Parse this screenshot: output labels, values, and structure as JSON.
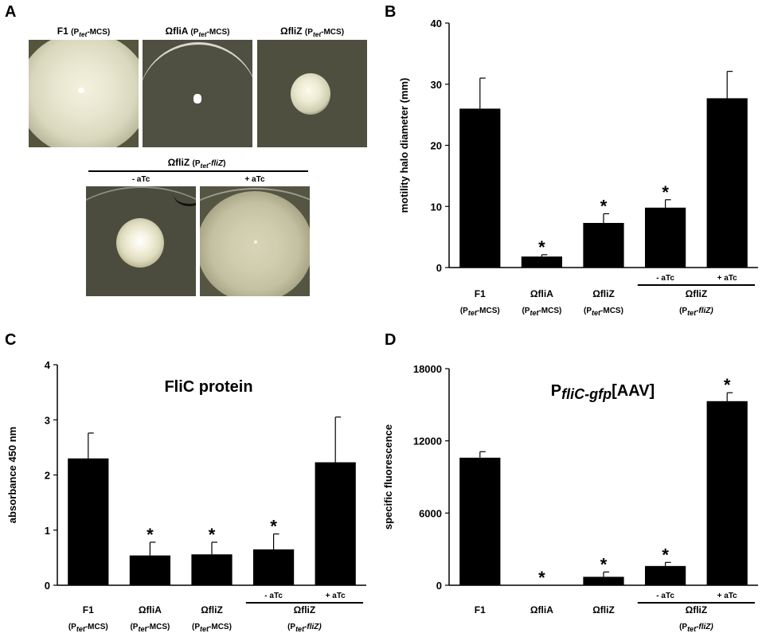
{
  "figure": {
    "panel_a": {
      "letter": "A",
      "top_plates": [
        {
          "name": "F1",
          "promoter": "P",
          "promoter_sub": "tet",
          "suffix": "-MCS"
        },
        {
          "name": "ΩfliA",
          "promoter": "P",
          "promoter_sub": "tet",
          "suffix": "-MCS"
        },
        {
          "name": "ΩfliZ",
          "promoter": "P",
          "promoter_sub": "tet",
          "suffix": "-MCS"
        }
      ],
      "bottom_group": {
        "name": "ΩfliZ",
        "promoter": "P",
        "promoter_sub": "tet",
        "suffix": "-",
        "gene": "fliZ"
      },
      "bottom_plates": [
        {
          "label": "- aTc"
        },
        {
          "label": "+ aTc"
        }
      ]
    },
    "panel_letters": {
      "b": "B",
      "c": "C",
      "d": "D"
    }
  },
  "chart_data": [
    {
      "panel": "B",
      "type": "bar",
      "title": "",
      "ylabel": "motility halo diameter (mm)",
      "ylim": [
        0,
        40
      ],
      "yticks": [
        "0",
        "10",
        "20",
        "30",
        "40"
      ],
      "categories": [
        "F1",
        "ΩfliA",
        "ΩfliZ",
        "- aTc",
        "+ aTc"
      ],
      "values": [
        26,
        1.8,
        7.3,
        9.8,
        27.7
      ],
      "errors": [
        5,
        0.3,
        1.5,
        1.3,
        4.4
      ],
      "significance": [
        "",
        "*",
        "*",
        "*",
        ""
      ],
      "bracket": {
        "label": "ΩfliZ",
        "promoter": "P",
        "promoter_sub": "tet",
        "suffix": "-",
        "gene": "fliZ"
      },
      "sublabels": [
        {
          "promoter": "P",
          "promoter_sub": "tet",
          "suffix": "-MCS"
        },
        {
          "promoter": "P",
          "promoter_sub": "tet",
          "suffix": "-MCS"
        },
        {
          "promoter": "P",
          "promoter_sub": "tet",
          "suffix": "-MCS"
        }
      ]
    },
    {
      "panel": "C",
      "type": "bar",
      "title": "FliC protein",
      "ylabel": "absorbance 450 nm",
      "ylim": [
        0,
        4
      ],
      "yticks": [
        "0",
        "1",
        "2",
        "3",
        "4"
      ],
      "categories": [
        "F1",
        "ΩfliA",
        "ΩfliZ",
        "- aTc",
        "+ aTc"
      ],
      "values": [
        2.3,
        0.54,
        0.56,
        0.65,
        2.23
      ],
      "errors": [
        0.46,
        0.24,
        0.22,
        0.28,
        0.82
      ],
      "significance": [
        "",
        "*",
        "*",
        "*",
        ""
      ],
      "bracket": {
        "label": "ΩfliZ",
        "promoter": "P",
        "promoter_sub": "tet",
        "suffix": "-",
        "gene": "fliZ"
      },
      "sublabels": [
        {
          "promoter": "P",
          "promoter_sub": "tet",
          "suffix": "-MCS"
        },
        {
          "promoter": "P",
          "promoter_sub": "tet",
          "suffix": "-MCS"
        },
        {
          "promoter": "P",
          "promoter_sub": "tet",
          "suffix": "-MCS"
        }
      ]
    },
    {
      "panel": "D",
      "type": "bar",
      "title_prefix": "P",
      "title_sub": "fliC-gfp",
      "title_suffix": "[AAV]",
      "ylabel": "specific fluorescence",
      "ylim": [
        0,
        18000
      ],
      "yticks": [
        "0",
        "6000",
        "12000",
        "18000"
      ],
      "categories": [
        "F1",
        "ΩfliA",
        "ΩfliZ",
        "- aTc",
        "+ aTc"
      ],
      "values": [
        10600,
        0,
        700,
        1600,
        15300
      ],
      "errors": [
        500,
        0,
        400,
        300,
        700
      ],
      "significance": [
        "",
        "*",
        "*",
        "*",
        "*"
      ],
      "bracket": {
        "label": "ΩfliZ",
        "promoter": "P",
        "promoter_sub": "tet",
        "suffix": "-",
        "gene": "fliZ"
      },
      "sublabels": []
    }
  ]
}
